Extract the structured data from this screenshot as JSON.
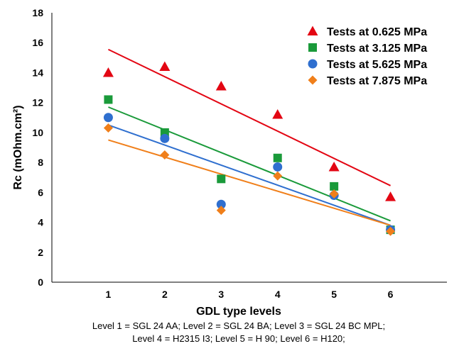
{
  "chart_data": {
    "type": "scatter",
    "xlabel": "GDL type levels",
    "ylabel": "Rc (mOhm.cm²)",
    "xlim": [
      0,
      7
    ],
    "ylim": [
      0,
      18
    ],
    "xticks": [
      "1",
      "2",
      "3",
      "4",
      "5",
      "6"
    ],
    "yticks": [
      "0",
      "2",
      "4",
      "6",
      "8",
      "10",
      "12",
      "14",
      "16",
      "18"
    ],
    "grid": false,
    "legend_position": "top-right",
    "notes": [
      "Level 1 = SGL 24 AA; Level 2 = SGL 24 BA; Level 3 = SGL 24 BC MPL;",
      "Level 4 = H2315 I3; Level 5 = H 90; Level 6 = H120;"
    ],
    "series": [
      {
        "name": "Tests at 0.625 MPa",
        "color": "#e30613",
        "marker": "triangle",
        "x": [
          1,
          2,
          3,
          4,
          5,
          6
        ],
        "y": [
          14.0,
          14.4,
          13.1,
          11.2,
          7.7,
          5.7
        ],
        "trend": [
          15.55,
          6.45
        ]
      },
      {
        "name": "Tests at 3.125 MPa",
        "color": "#1a9a3a",
        "marker": "square",
        "x": [
          1,
          2,
          3,
          4,
          5,
          6
        ],
        "y": [
          12.2,
          10.0,
          6.9,
          8.3,
          6.4,
          3.5
        ],
        "trend": [
          11.7,
          4.1
        ]
      },
      {
        "name": "Tests at 5.625 MPa",
        "color": "#2f6fcf",
        "marker": "circle",
        "x": [
          1,
          2,
          3,
          4,
          5,
          6
        ],
        "y": [
          11.0,
          9.6,
          5.2,
          7.7,
          5.8,
          3.5
        ],
        "trend": [
          10.5,
          3.8
        ]
      },
      {
        "name": "Tests at 7.875 MPa",
        "color": "#f07f1a",
        "marker": "diamond",
        "x": [
          1,
          2,
          3,
          4,
          5,
          6
        ],
        "y": [
          10.3,
          8.5,
          4.8,
          7.1,
          5.9,
          3.4
        ],
        "trend": [
          9.5,
          3.8
        ]
      }
    ]
  }
}
